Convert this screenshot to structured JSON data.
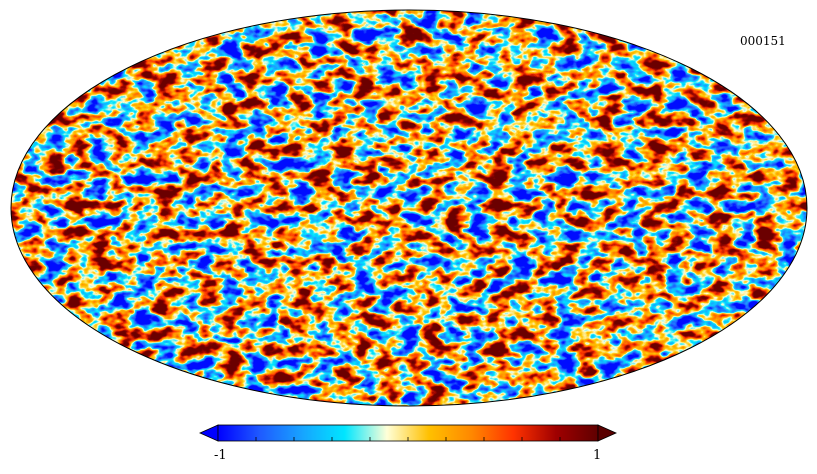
{
  "map": {
    "projection": "mollweide",
    "map_id": "000151",
    "field_style": "small-scale random anisotropic fluctuations",
    "palette": [
      "#0000ff",
      "#1e90ff",
      "#00d0ff",
      "#fffde0",
      "#ffc400",
      "#ff8c00",
      "#e83a00",
      "#7a0000"
    ]
  },
  "colorbar": {
    "min_label": "-1",
    "max_label": "1",
    "extend": "both",
    "colors": [
      "#0000ff",
      "#1f5bff",
      "#17a4ff",
      "#00e6ff",
      "#ffffd8",
      "#ffc000",
      "#ff8800",
      "#ff3300",
      "#a00000",
      "#600000"
    ]
  }
}
